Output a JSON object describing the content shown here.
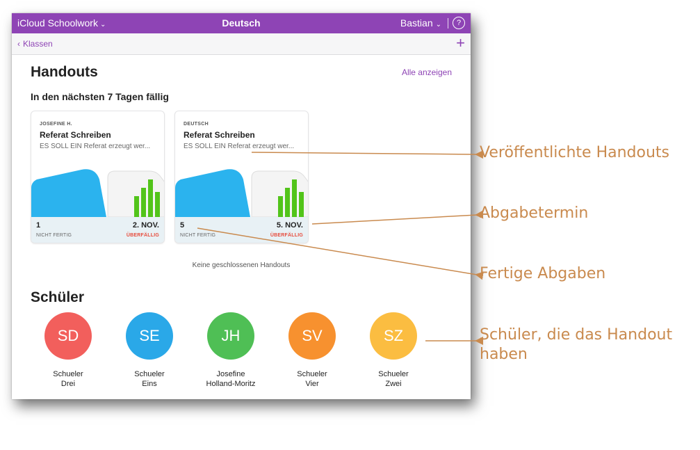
{
  "titlebar": {
    "app_title": "iCloud Schoolwork",
    "class_title": "Deutsch",
    "user": "Bastian",
    "chevron": "⌄",
    "help": "?"
  },
  "nav": {
    "back_label": "Klassen",
    "back_icon": "‹",
    "add_icon": "+"
  },
  "handouts": {
    "heading": "Handouts",
    "show_all": "Alle anzeigen",
    "due_heading": "In den nächsten 7 Tagen fällig",
    "no_closed": "Keine geschlossenen Handouts",
    "cards": [
      {
        "owner": "JOSEFINE H.",
        "title": "Referat Schreiben",
        "description": "ES SOLL EIN Referat erzeugt wer...",
        "count": "1",
        "count_label": "NICHT FERTIG",
        "date": "2. NOV.",
        "status": "ÜBERFÄLLIG"
      },
      {
        "owner": "DEUTSCH",
        "title": "Referat Schreiben",
        "description": "ES SOLL EIN Referat erzeugt wer...",
        "count": "5",
        "count_label": "NICHT FERTIG",
        "date": "5. NOV.",
        "status": "ÜBERFÄLLIG"
      }
    ]
  },
  "students": {
    "heading": "Schüler",
    "list": [
      {
        "initials": "SD",
        "first": "Schueler",
        "last": "Drei",
        "color": "#f25f5c"
      },
      {
        "initials": "SE",
        "first": "Schueler",
        "last": "Eins",
        "color": "#2aa8e8"
      },
      {
        "initials": "JH",
        "first": "Josefine",
        "last": "Holland-Moritz",
        "color": "#4fbf55"
      },
      {
        "initials": "SV",
        "first": "Schueler",
        "last": "Vier",
        "color": "#f7912f"
      },
      {
        "initials": "SZ",
        "first": "Schueler",
        "last": "Zwei",
        "color": "#fbbd41"
      }
    ]
  },
  "callouts": {
    "published": "Veröffentlichte Handouts",
    "due_date": "Abgabetermin",
    "finished": "Fertige Abgaben",
    "students_line1": "Schüler, die das Handout",
    "students_line2": "haben"
  },
  "colors": {
    "accent": "#8e44b5",
    "overdue": "#e74c3c",
    "callout": "#c98a4e"
  }
}
